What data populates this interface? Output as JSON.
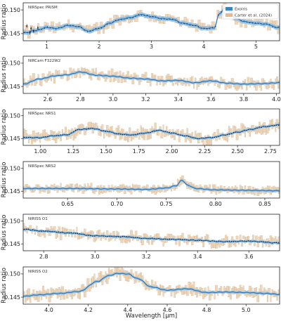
{
  "figure": {
    "xlabel": "Wavelength [μm]",
    "legend": {
      "placement": "top-right of first panel",
      "entries": [
        {
          "label": "Exoiris",
          "color": "#3a86c0"
        },
        {
          "label": "Carter et al. (2024)",
          "color": "#e8b98a"
        }
      ]
    },
    "colors": {
      "model": "#2f72b0",
      "band": "#8fc0e6",
      "observations": "#e6c8a6",
      "points": "#111111"
    }
  },
  "chart_data": [
    {
      "type": "line",
      "title": "NIRSpec PRISM",
      "ylabel": "Radius ratio",
      "xlim": [
        0.55,
        5.45
      ],
      "ylim": [
        0.1435,
        0.1515
      ],
      "xticks": [
        "1",
        "2",
        "3",
        "4",
        "5"
      ],
      "xtick_values": [
        1,
        2,
        3,
        4,
        5
      ],
      "yticks": [
        "0.145",
        "0.150"
      ],
      "ytick_values": [
        0.145,
        0.15
      ],
      "x": [
        0.6,
        0.8,
        1.0,
        1.2,
        1.4,
        1.6,
        1.8,
        2.0,
        2.2,
        2.4,
        2.6,
        2.8,
        3.0,
        3.2,
        3.4,
        3.6,
        3.8,
        4.0,
        4.2,
        4.3,
        4.4,
        4.5,
        4.6,
        4.8,
        5.0,
        5.2,
        5.4
      ],
      "y": [
        0.1452,
        0.1457,
        0.1463,
        0.1461,
        0.1467,
        0.1465,
        0.1455,
        0.1461,
        0.1472,
        0.148,
        0.1484,
        0.149,
        0.1486,
        0.1482,
        0.148,
        0.1472,
        0.1468,
        0.1461,
        0.1462,
        0.1492,
        0.1503,
        0.1498,
        0.1482,
        0.1475,
        0.1472,
        0.147,
        0.1463
      ],
      "series": [
        {
          "name": "Exoiris"
        },
        {
          "name": "Carter et al. (2024)"
        }
      ]
    },
    {
      "type": "line",
      "title": "NIRCam F322W2",
      "ylabel": "Radius ratio",
      "xlim": [
        2.45,
        4.02
      ],
      "ylim": [
        0.1435,
        0.1515
      ],
      "xticks": [
        "2.6",
        "2.8",
        "3.0",
        "3.2",
        "3.4",
        "3.6",
        "3.8",
        "4.0"
      ],
      "xtick_values": [
        2.6,
        2.8,
        3.0,
        3.2,
        3.4,
        3.6,
        3.8,
        4.0
      ],
      "yticks": [
        "0.145",
        "0.150"
      ],
      "ytick_values": [
        0.145,
        0.15
      ],
      "x": [
        2.45,
        2.55,
        2.65,
        2.72,
        2.8,
        2.9,
        3.0,
        3.1,
        3.2,
        3.3,
        3.4,
        3.5,
        3.6,
        3.7,
        3.8,
        3.9,
        4.02
      ],
      "y": [
        0.1455,
        0.1466,
        0.1473,
        0.1475,
        0.1481,
        0.1474,
        0.1472,
        0.1468,
        0.1466,
        0.1462,
        0.1463,
        0.1458,
        0.1462,
        0.1457,
        0.1455,
        0.1456,
        0.1458
      ],
      "series": [
        {
          "name": "Exoiris"
        },
        {
          "name": "Carter et al. (2024)"
        }
      ]
    },
    {
      "type": "line",
      "title": "NIRSpec NRS1",
      "ylabel": "Radius ratio",
      "xlim": [
        0.87,
        2.82
      ],
      "ylim": [
        0.1435,
        0.1515
      ],
      "xticks": [
        "1.00",
        "1.25",
        "1.50",
        "1.75",
        "2.00",
        "2.25",
        "2.50",
        "2.75"
      ],
      "xtick_values": [
        1.0,
        1.25,
        1.5,
        1.75,
        2.0,
        2.25,
        2.5,
        2.75
      ],
      "yticks": [
        "0.145",
        "0.150"
      ],
      "ytick_values": [
        0.145,
        0.15
      ],
      "x": [
        0.87,
        1.0,
        1.1,
        1.2,
        1.3,
        1.4,
        1.5,
        1.6,
        1.7,
        1.8,
        1.9,
        2.0,
        2.1,
        2.2,
        2.3,
        2.4,
        2.5,
        2.6,
        2.7,
        2.82
      ],
      "y": [
        0.1452,
        0.1452,
        0.1456,
        0.1458,
        0.147,
        0.1472,
        0.1466,
        0.146,
        0.1458,
        0.1462,
        0.1468,
        0.1462,
        0.1456,
        0.145,
        0.1452,
        0.1458,
        0.1464,
        0.147,
        0.1476,
        0.148
      ],
      "series": [
        {
          "name": "Exoiris"
        },
        {
          "name": "Carter et al. (2024)"
        }
      ]
    },
    {
      "type": "line",
      "title": "NIRSpec NRS2",
      "ylabel": "Radius ratio",
      "xlim": [
        0.605,
        0.865
      ],
      "ylim": [
        0.1435,
        0.1515
      ],
      "xticks": [
        "0.65",
        "0.70",
        "0.75",
        "0.80",
        "0.85"
      ],
      "xtick_values": [
        0.65,
        0.7,
        0.75,
        0.8,
        0.85
      ],
      "yticks": [
        "0.145",
        "0.150"
      ],
      "ytick_values": [
        0.145,
        0.15
      ],
      "x": [
        0.605,
        0.65,
        0.7,
        0.73,
        0.75,
        0.76,
        0.766,
        0.772,
        0.78,
        0.8,
        0.83,
        0.865
      ],
      "y": [
        0.1456,
        0.1456,
        0.1455,
        0.1454,
        0.1457,
        0.1462,
        0.1474,
        0.1463,
        0.1456,
        0.1453,
        0.1452,
        0.1451
      ],
      "series": [
        {
          "name": "Exoiris"
        },
        {
          "name": "Carter et al. (2024)"
        }
      ]
    },
    {
      "type": "line",
      "title": "NIRISS O1",
      "ylabel": "Radius ratio",
      "xlim": [
        2.72,
        3.72
      ],
      "ylim": [
        0.1435,
        0.1515
      ],
      "xticks": [
        "2.8",
        "3.0",
        "3.2",
        "3.4",
        "3.6"
      ],
      "xtick_values": [
        2.8,
        3.0,
        3.2,
        3.4,
        3.6
      ],
      "yticks": [
        "0.145",
        "0.150"
      ],
      "ytick_values": [
        0.145,
        0.15
      ],
      "x": [
        2.72,
        2.8,
        2.9,
        3.0,
        3.1,
        3.2,
        3.3,
        3.4,
        3.5,
        3.6,
        3.72
      ],
      "y": [
        0.1482,
        0.1478,
        0.1474,
        0.1468,
        0.1466,
        0.1462,
        0.146,
        0.1458,
        0.1455,
        0.1456,
        0.1452
      ],
      "series": [
        {
          "name": "Exoiris"
        },
        {
          "name": "Carter et al. (2024)"
        }
      ]
    },
    {
      "type": "line",
      "title": "NIRISS O2",
      "ylabel": "Radius ratio",
      "xlabel": "Wavelength [μm]",
      "xlim": [
        3.87,
        5.17
      ],
      "ylim": [
        0.1435,
        0.1515
      ],
      "xticks": [
        "4.0",
        "4.2",
        "4.4",
        "4.6",
        "4.8",
        "5.0"
      ],
      "xtick_values": [
        4.0,
        4.2,
        4.4,
        4.6,
        4.8,
        5.0
      ],
      "yticks": [
        "0.145",
        "0.150"
      ],
      "ytick_values": [
        0.145,
        0.15
      ],
      "x": [
        3.87,
        3.95,
        4.05,
        4.15,
        4.25,
        4.3,
        4.35,
        4.4,
        4.45,
        4.52,
        4.6,
        4.7,
        4.8,
        4.9,
        5.0,
        5.1,
        5.17
      ],
      "y": [
        0.1452,
        0.1455,
        0.1458,
        0.1462,
        0.1484,
        0.1496,
        0.1501,
        0.15,
        0.149,
        0.1472,
        0.1465,
        0.1468,
        0.146,
        0.1461,
        0.146,
        0.1458,
        0.1456
      ],
      "series": [
        {
          "name": "Exoiris"
        },
        {
          "name": "Carter et al. (2024)"
        }
      ]
    }
  ]
}
